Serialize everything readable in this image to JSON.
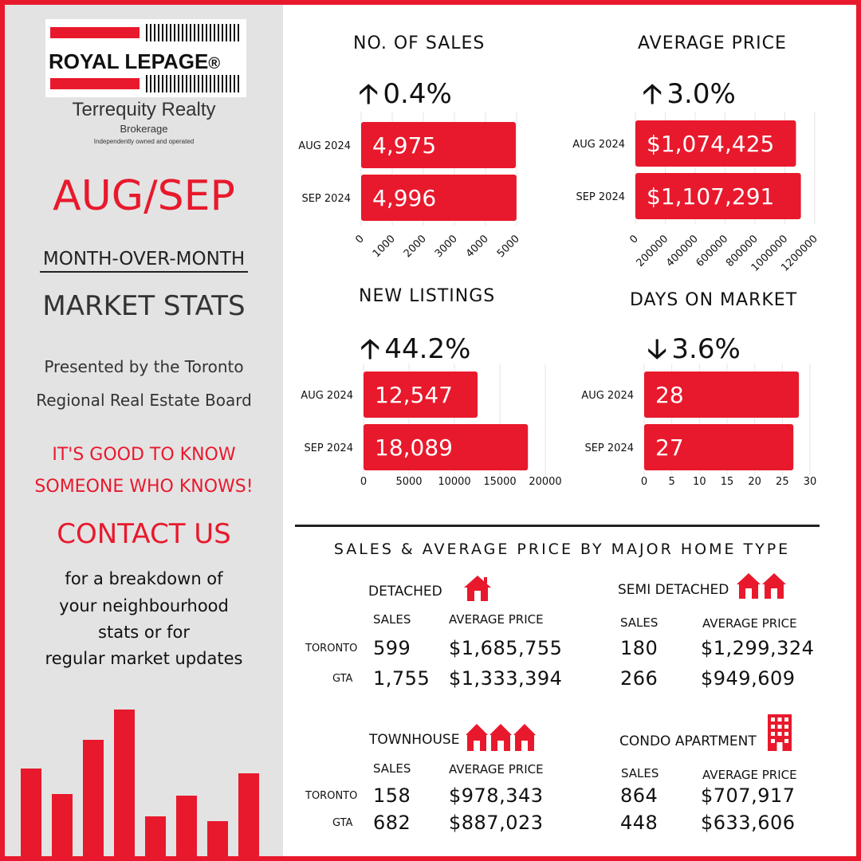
{
  "brand": {
    "logo_text": "ROYAL LEPAGE",
    "reg_mark": "®",
    "company": "Terrequity Realty",
    "brokerage": "Brokerage",
    "independent": "Independently owned and operated"
  },
  "sidebar": {
    "period": "AUG/SEP",
    "subtitle_1": "MONTH-OVER-MONTH",
    "subtitle_2": "MARKET STATS",
    "presented_1": "Presented by the Toronto",
    "presented_2": "Regional Real Estate Board",
    "tagline_1": "IT'S GOOD TO KNOW",
    "tagline_2": "SOMEONE WHO KNOWS!",
    "contact": "CONTACT US",
    "contact_lines": [
      "for a breakdown of",
      "your neighbourhood",
      "stats or for",
      "regular market updates"
    ],
    "decor_bar_levels": [
      0.55,
      0.39,
      0.73,
      0.92,
      0.25,
      0.38,
      0.22,
      0.52
    ]
  },
  "colors": {
    "accent": "#e8192c",
    "sidebar_bg": "#e3e3e3",
    "text": "#111111"
  },
  "chart_data": [
    {
      "type": "bar",
      "orientation": "horizontal",
      "title": "NO. OF SALES",
      "change": {
        "direction": "up",
        "text": "0.4%"
      },
      "categories": [
        "AUG 2024",
        "SEP 2024"
      ],
      "values": [
        4975,
        4996
      ],
      "value_labels": [
        "4,975",
        "4,996"
      ],
      "xlim": [
        0,
        5000
      ],
      "ticks": [
        0,
        1000,
        2000,
        3000,
        4000,
        5000
      ],
      "tick_labels": [
        "0",
        "1000",
        "2000",
        "3000",
        "4000",
        "5000"
      ],
      "tick_rotated": true
    },
    {
      "type": "bar",
      "orientation": "horizontal",
      "title": "AVERAGE PRICE",
      "change": {
        "direction": "up",
        "text": "3.0%"
      },
      "categories": [
        "AUG 2024",
        "SEP 2024"
      ],
      "values": [
        1074425,
        1107291
      ],
      "value_labels": [
        "$1,074,425",
        "$1,107,291"
      ],
      "xlim": [
        0,
        1200000
      ],
      "ticks": [
        0,
        200000,
        400000,
        600000,
        800000,
        1000000,
        1200000
      ],
      "tick_labels": [
        "0",
        "200000",
        "400000",
        "600000",
        "800000",
        "1000000",
        "1200000"
      ],
      "tick_rotated": true
    },
    {
      "type": "bar",
      "orientation": "horizontal",
      "title": "NEW LISTINGS",
      "change": {
        "direction": "up",
        "text": "44.2%"
      },
      "categories": [
        "AUG 2024",
        "SEP 2024"
      ],
      "values": [
        12547,
        18089
      ],
      "value_labels": [
        "12,547",
        "18,089"
      ],
      "xlim": [
        0,
        20000
      ],
      "ticks": [
        0,
        5000,
        10000,
        15000,
        20000
      ],
      "tick_labels": [
        "0",
        "5000",
        "10000",
        "15000",
        "20000"
      ],
      "tick_rotated": false
    },
    {
      "type": "bar",
      "orientation": "horizontal",
      "title": "DAYS ON MARKET",
      "change": {
        "direction": "down",
        "text": "3.6%"
      },
      "categories": [
        "AUG 2024",
        "SEP 2024"
      ],
      "values": [
        28,
        27
      ],
      "value_labels": [
        "28",
        "27"
      ],
      "xlim": [
        0,
        30
      ],
      "ticks": [
        0,
        5,
        10,
        15,
        20,
        25,
        30
      ],
      "tick_labels": [
        "0",
        "5",
        "10",
        "15",
        "20",
        "25",
        "30"
      ],
      "tick_rotated": false
    },
    {
      "type": "table",
      "title": "SALES & AVERAGE PRICE BY MAJOR HOME TYPE",
      "columns": [
        "SALES",
        "AVERAGE PRICE"
      ],
      "rows": [
        "TORONTO",
        "GTA"
      ],
      "groups": [
        {
          "name": "DETACHED",
          "icon": "house-icon",
          "sales": [
            "599",
            "1,755"
          ],
          "avg_price": [
            "$1,685,755",
            "$1,333,394"
          ]
        },
        {
          "name": "SEMI DETACHED",
          "icon": "semi-detached-houses-icon",
          "sales": [
            "180",
            "266"
          ],
          "avg_price": [
            "$1,299,324",
            "$949,609"
          ]
        },
        {
          "name": "TOWNHOUSE",
          "icon": "townhouses-icon",
          "sales": [
            "158",
            "682"
          ],
          "avg_price": [
            "$978,343",
            "$887,023"
          ]
        },
        {
          "name": "CONDO APARTMENT",
          "icon": "apartment-building-icon",
          "sales": [
            "864",
            "448"
          ],
          "avg_price": [
            "$707,917",
            "$633,606"
          ]
        }
      ]
    }
  ]
}
